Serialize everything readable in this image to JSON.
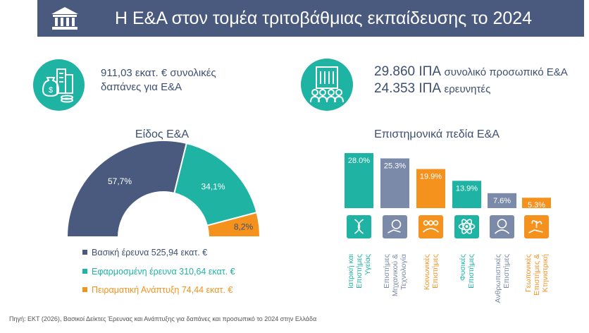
{
  "header": {
    "title": "Η Ε&Α στον τομέα τριτοβάθμιας εκπαίδευσης το 2024"
  },
  "kpi_left": {
    "line1": "911,03 εκατ. € συνολικές",
    "line2": "δαπάνες για Ε&Α"
  },
  "kpi_right": {
    "line1_value": "29.860 ΙΠΑ",
    "line1_label": "συνολικό προσωπικό Ε&Α",
    "line2_value": "24.353 ΙΠΑ",
    "line2_label": "ερευνητές"
  },
  "chart_data": [
    {
      "type": "pie",
      "title": "Είδος Ε&Α",
      "categories": [
        "Βασική έρευνα",
        "Εφαρμοσμένη έρευνα",
        "Πειραματική Ανάπτυξη"
      ],
      "values": [
        57.7,
        34.1,
        8.2
      ],
      "data_labels": [
        "57,7%",
        "34,1%",
        "8,2%"
      ],
      "colors": [
        "#4a5a7e",
        "#1fb3a4",
        "#f5921e"
      ],
      "legend": [
        "Βασική έρευνα 525,94 εκατ. €",
        "Εφαρμοσμένη έρευνα 310,64 εκατ. €",
        "Πειραματική Ανάπτυξη 74,44 εκατ. €"
      ]
    },
    {
      "type": "bar",
      "title": "Επιστημονικά πεδία Ε&Α",
      "categories": [
        [
          "Ιατρική και",
          "Επιστήμες",
          "Υγείας"
        ],
        [
          "Επιστήμες",
          "Μηχανικού &",
          "Τεχνολογία"
        ],
        [
          "Κοινωνικές",
          "Επιστήμες"
        ],
        [
          "Φυσικές",
          "Επιστήμες"
        ],
        [
          "Ανθρωπιστικές",
          "Επιστήμες"
        ],
        [
          "Γεωπονικές",
          "Επιστήμες &",
          "Κτηνιατρική"
        ]
      ],
      "values": [
        28.0,
        25.3,
        19.9,
        13.9,
        7.6,
        5.3
      ],
      "data_labels": [
        "28.0%",
        "25.3%",
        "19.9%",
        "13.9%",
        "7.6%",
        "5.3%"
      ],
      "colors": [
        "#1fb3a4",
        "#7b8aa8",
        "#f5921e",
        "#1fb3a4",
        "#7b8aa8",
        "#f5921e"
      ],
      "icons": [
        "dna-icon",
        "gear-hand-icon",
        "people-group-icon",
        "atom-icon",
        "person-head-icon",
        "plant-hand-icon"
      ],
      "ylim": [
        0,
        28.0
      ]
    }
  ],
  "source": "Πηγή: ΕΚΤ (2026), Βασικοί Δείκτες Έρευνας και Ανάπτυξης για δαπάνες και προσωπικό το 2024 στην Ελλάδα"
}
